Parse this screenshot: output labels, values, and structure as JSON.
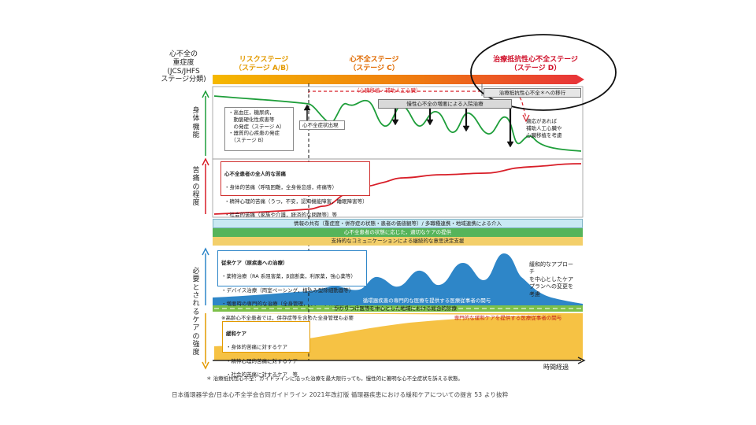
{
  "header": {
    "axis_title": "心不全の\n重症度\n(JCS/JHFS\nステージ分類)",
    "stage_a_b": "リスクステージ\n（ステージ A/B）",
    "stage_c": "心不全ステージ\n（ステージ C）",
    "stage_d": "治療抵抗性心不全ステージ\n（ステージ D）"
  },
  "left_axes": {
    "physical": "身体機能",
    "suffering": "苦痛の程度",
    "care": "必要とされるケアの強度"
  },
  "physical": {
    "risk_box": "・高血圧，糖尿病，\n　動脈硬化性疾患等\n　の発症（ステージ A）\n・器質的心疾患の発症\n　（ステージ B）",
    "onset_label": "心不全症状出現",
    "device_label": "（心臓移植・補助人工心臓）",
    "hosp_label": "慢性心不全の増悪による入院治療",
    "transition_label": "治療抵抗性心不全＊への移行",
    "adapt_box": "適応があれば\n補助人工心臓や\n心臓移植を考慮"
  },
  "suffering": {
    "title": "心不全患者の全人的な苦痛",
    "items": [
      "・身体的苦痛（呼吸困難，全身倦怠感，疼痛等）",
      "・精神心理的苦痛（うつ，不安，認知機能障害，睡眠障害等）",
      "・社会的苦痛（家族や介護，経済的な問題等）等"
    ]
  },
  "bands": {
    "info_share": "情報の共有（重症度・併存症の状態・患者の価値観等）/ 多職種連携・地域連携による介入",
    "appropriate_care": "心不全患者の状態に応じた，適切なケアの提供",
    "decision": "支持的なコミュニケーションによる継続的な意思決定支援",
    "cardio_pro": "循環器疾患の専門的な医療を提供する医療従事者の関与",
    "family_doc": "かかりつけ医等を中心とした地域における総合的診療",
    "palliative_pro": "専門的な緩和ケアを提供する医療従事者の関与"
  },
  "care": {
    "standard_title": "従来ケア（原疾患への治療）",
    "standard_items": [
      "・薬物治療（RA 系阻害薬，β遮断薬，利尿薬，強心薬等）",
      "・デバイス治療（両室ペーシング，植込み型除細動器等）",
      "・増悪時の専門的な治療（全身管理，カテーテル治療等）等",
      "※高齢心不全患者では，併存症等を含めた全身管理も必要"
    ],
    "shift_box": "緩和的なアプローチ\nを中心としたケア\nプランへの変更を考慮",
    "palliative_title": "緩和ケア",
    "palliative_items": [
      "・身体的苦痛に対するケア",
      "・精神心理的苦痛に対するケア",
      "・社会的苦痛に対するケア　等"
    ]
  },
  "x_axis": "時間経過",
  "footnote": "＊ 治療抵抗性心不全：ガイドラインに沿った治療を最大限行っても，慢性的に著明な心不全症状を訴える状態。",
  "source": "日本循環器学会/日本心不全学会合同ガイドライン 2021年改訂版 循環器疾患における緩和ケアについての提言 53 より抜粋",
  "colors": {
    "stage_gradient_start": "#f5b800",
    "stage_gradient_end": "#e8323a",
    "stage_a_text": "#e39a00",
    "stage_c_text": "#e06a00",
    "stage_d_text": "#d0102a",
    "physical_line": "#1e9e3a",
    "suffering_line": "#d81e28",
    "standard_care": "#2e86c8",
    "palliative_care": "#f6c244",
    "info_band": "#c9e9f3",
    "care_band": "#56b45a",
    "decision_band": "#f3cf6a"
  }
}
